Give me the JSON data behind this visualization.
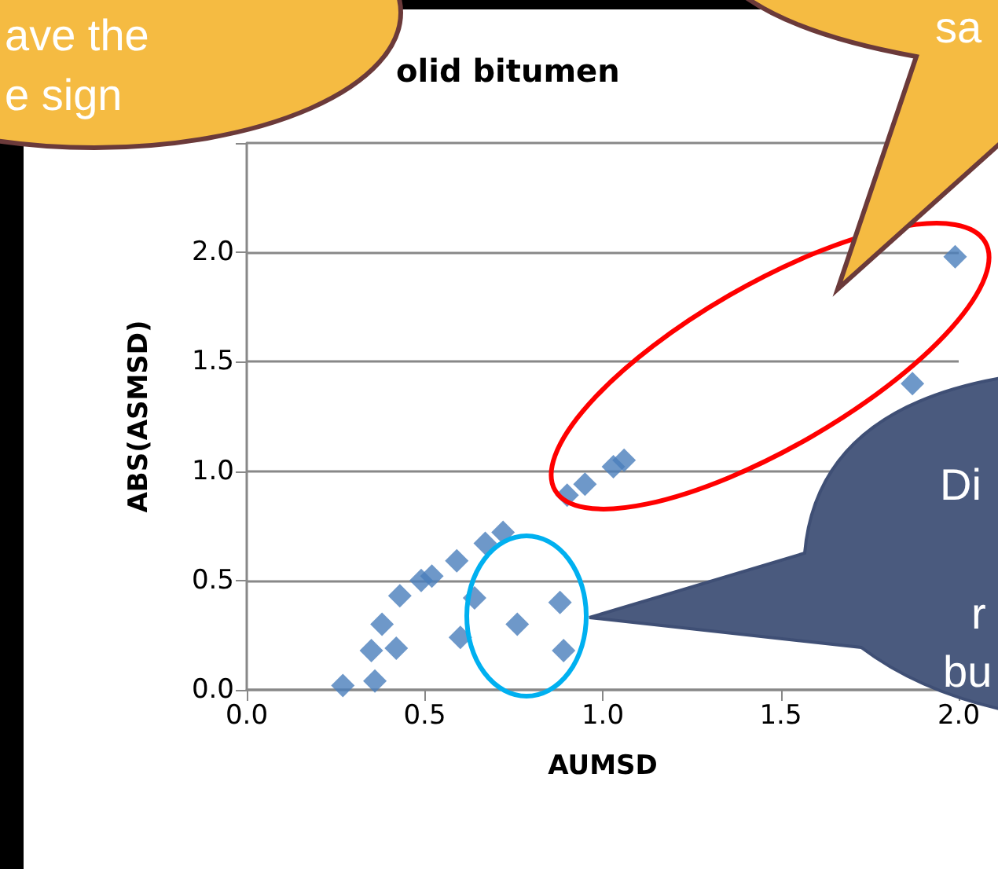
{
  "chart_data": {
    "type": "scatter",
    "title": "olid bitumen",
    "xlabel": "AUMSD",
    "ylabel": "ABS(ASMSD)",
    "x": [
      0.27,
      0.36,
      0.35,
      0.42,
      0.38,
      0.43,
      0.49,
      0.52,
      0.59,
      0.6,
      0.64,
      0.67,
      0.72,
      0.76,
      0.88,
      0.89,
      0.9,
      0.95,
      1.03,
      1.06,
      1.87,
      1.99
    ],
    "series": [
      {
        "color": "#4a7ebb",
        "values": [
          0.02,
          0.04,
          0.18,
          0.19,
          0.3,
          0.43,
          0.5,
          0.52,
          0.59,
          0.24,
          0.42,
          0.67,
          0.72,
          0.3,
          0.4,
          0.18,
          0.89,
          0.94,
          1.02,
          1.05,
          1.4,
          1.98
        ]
      }
    ],
    "xlim": [
      0,
      2.0
    ],
    "xticks": [
      {
        "value": 0,
        "label": "0.0"
      },
      0.5,
      {
        "value": 1,
        "label": "1.0"
      },
      1.5,
      {
        "value": 2,
        "label": "2.0"
      }
    ],
    "ylim": [
      0,
      2.5
    ],
    "yticks": [
      {
        "value": 0,
        "label": "0.0"
      },
      0.5,
      {
        "value": 1,
        "label": "1.0"
      },
      1.5,
      {
        "value": 2,
        "label": "2.0"
      },
      {
        "value": 2.5,
        "label": null
      }
    ],
    "grid": "y",
    "marker": "diamond",
    "annotations": [
      "ave the",
      "e sign",
      "sa",
      "Di",
      "r",
      "bu"
    ]
  }
}
